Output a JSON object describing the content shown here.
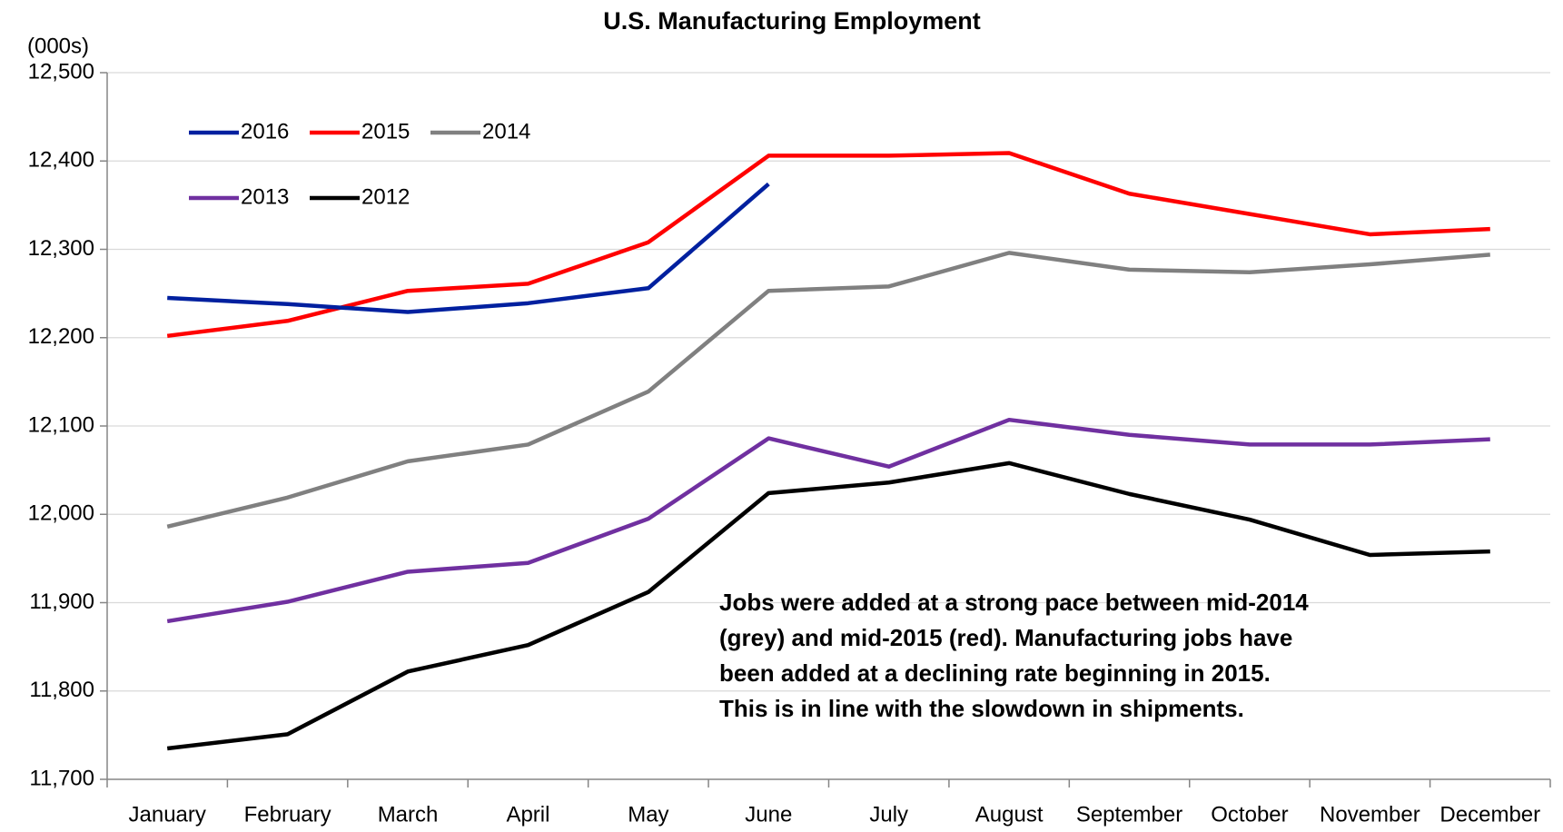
{
  "chart_data": {
    "type": "line",
    "title": "U.S. Manufacturing Employment",
    "y_unit_label": "(000s)",
    "categories": [
      "January",
      "February",
      "March",
      "April",
      "May",
      "June",
      "July",
      "August",
      "September",
      "October",
      "November",
      "December"
    ],
    "series": [
      {
        "name": "2016",
        "color": "#00209f",
        "values": [
          12245,
          12238,
          12229,
          12239,
          12256,
          12374,
          null,
          null,
          null,
          null,
          null,
          null
        ]
      },
      {
        "name": "2015",
        "color": "#ff0000",
        "values": [
          12202,
          12219,
          12253,
          12261,
          12308,
          12406,
          12406,
          12409,
          12363,
          12340,
          12317,
          12323
        ]
      },
      {
        "name": "2014",
        "color": "#808080",
        "values": [
          11986,
          12019,
          12060,
          12079,
          12139,
          12253,
          12258,
          12296,
          12277,
          12274,
          12283,
          12294
        ]
      },
      {
        "name": "2013",
        "color": "#7030a0",
        "values": [
          11879,
          11901,
          11935,
          11945,
          11995,
          12086,
          12054,
          12107,
          12090,
          12079,
          12079,
          12085
        ]
      },
      {
        "name": "2012",
        "color": "#000000",
        "values": [
          11735,
          11751,
          11822,
          11852,
          11912,
          12024,
          12036,
          12058,
          12023,
          11994,
          11954,
          11958
        ]
      }
    ],
    "ylim": [
      11700,
      12500
    ],
    "yticks": [
      {
        "value": 11700,
        "label": "11,700"
      },
      {
        "value": 11800,
        "label": "11,800"
      },
      {
        "value": 11900,
        "label": "11,900"
      },
      {
        "value": 12000,
        "label": "12,000"
      },
      {
        "value": 12100,
        "label": "12,100"
      },
      {
        "value": 12200,
        "label": "12,200"
      },
      {
        "value": 12300,
        "label": "12,300"
      },
      {
        "value": 12400,
        "label": "12,400"
      },
      {
        "value": 12500,
        "label": "12,500"
      }
    ],
    "grid": true,
    "legend": "upper left",
    "annotation": [
      "Jobs were added at a strong pace between mid-2014",
      "(grey) and mid-2015 (red). Manufacturing jobs have",
      "been added at a declining rate beginning in 2015.",
      "This is in line with the slowdown in shipments."
    ]
  }
}
